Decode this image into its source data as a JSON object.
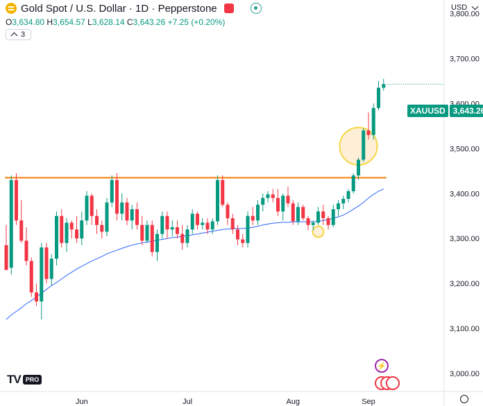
{
  "header": {
    "title": "Gold Spot / U.S. Dollar · 1D · Pepperstone",
    "ohlc": {
      "o_label": "O",
      "o": "3,634.80",
      "h_label": "H",
      "h": "3,654.57",
      "l_label": "L",
      "l": "3,628.14",
      "c_label": "C",
      "c": "3,643.26",
      "change": "+7.25 (+0.20%)"
    },
    "indicator_count": "3"
  },
  "currency": "USD",
  "price_tag": {
    "symbol": "XAUUSD",
    "value": "3,643.26"
  },
  "branding": {
    "logo": "TV",
    "badge": "PRO"
  },
  "colors": {
    "up": "#089981",
    "down": "#f23645",
    "ma": "#2962ff",
    "resistance": "#f57c00",
    "highlight_fill": "#fde9c8",
    "highlight_stroke": "#f5d742"
  },
  "chart_data": {
    "type": "candlestick",
    "symbol": "XAUUSD",
    "y_ticks": [
      3000,
      3100,
      3200,
      3300,
      3400,
      3500,
      3600,
      3700,
      3800
    ],
    "y_tick_labels": [
      "3,000.00",
      "3,100.00",
      "3,200.00",
      "3,300.00",
      "3,400.00",
      "3,500.00",
      "3,600.00",
      "3,700.00",
      "3,800.00"
    ],
    "ylim": [
      2960,
      3830
    ],
    "x_ticks": [
      "Jun",
      "Jul",
      "Aug",
      "Sep"
    ],
    "x_tick_index": [
      15,
      36,
      57,
      72
    ],
    "candles": [
      [
        3285,
        3330,
        3230,
        3230
      ],
      [
        3235,
        3440,
        3220,
        3430
      ],
      [
        3430,
        3445,
        3330,
        3340
      ],
      [
        3340,
        3385,
        3290,
        3295
      ],
      [
        3295,
        3325,
        3240,
        3250
      ],
      [
        3250,
        3258,
        3170,
        3180
      ],
      [
        3180,
        3200,
        3150,
        3160
      ],
      [
        3160,
        3290,
        3120,
        3280
      ],
      [
        3280,
        3290,
        3200,
        3210
      ],
      [
        3210,
        3265,
        3195,
        3255
      ],
      [
        3255,
        3360,
        3240,
        3350
      ],
      [
        3350,
        3365,
        3280,
        3290
      ],
      [
        3290,
        3345,
        3270,
        3335
      ],
      [
        3335,
        3340,
        3300,
        3320
      ],
      [
        3320,
        3350,
        3290,
        3300
      ],
      [
        3300,
        3360,
        3285,
        3340
      ],
      [
        3340,
        3405,
        3330,
        3395
      ],
      [
        3395,
        3400,
        3330,
        3350
      ],
      [
        3350,
        3365,
        3310,
        3330
      ],
      [
        3330,
        3340,
        3300,
        3315
      ],
      [
        3315,
        3390,
        3305,
        3380
      ],
      [
        3380,
        3440,
        3370,
        3430
      ],
      [
        3430,
        3445,
        3340,
        3355
      ],
      [
        3355,
        3400,
        3340,
        3380
      ],
      [
        3380,
        3390,
        3330,
        3340
      ],
      [
        3340,
        3375,
        3320,
        3365
      ],
      [
        3365,
        3380,
        3320,
        3330
      ],
      [
        3330,
        3350,
        3285,
        3295
      ],
      [
        3295,
        3340,
        3290,
        3330
      ],
      [
        3330,
        3340,
        3260,
        3270
      ],
      [
        3270,
        3320,
        3250,
        3310
      ],
      [
        3310,
        3360,
        3300,
        3350
      ],
      [
        3350,
        3360,
        3300,
        3320
      ],
      [
        3320,
        3340,
        3305,
        3325
      ],
      [
        3325,
        3340,
        3300,
        3310
      ],
      [
        3310,
        3330,
        3275,
        3290
      ],
      [
        3290,
        3330,
        3280,
        3320
      ],
      [
        3320,
        3365,
        3310,
        3355
      ],
      [
        3355,
        3360,
        3320,
        3330
      ],
      [
        3330,
        3345,
        3320,
        3335
      ],
      [
        3335,
        3345,
        3310,
        3320
      ],
      [
        3320,
        3345,
        3310,
        3338
      ],
      [
        3338,
        3440,
        3330,
        3430
      ],
      [
        3430,
        3440,
        3370,
        3375
      ],
      [
        3375,
        3380,
        3330,
        3345
      ],
      [
        3345,
        3355,
        3310,
        3320
      ],
      [
        3320,
        3330,
        3285,
        3298
      ],
      [
        3298,
        3310,
        3280,
        3290
      ],
      [
        3290,
        3360,
        3280,
        3350
      ],
      [
        3350,
        3370,
        3330,
        3340
      ],
      [
        3340,
        3385,
        3330,
        3375
      ],
      [
        3375,
        3400,
        3360,
        3390
      ],
      [
        3390,
        3405,
        3380,
        3398
      ],
      [
        3398,
        3410,
        3380,
        3390
      ],
      [
        3390,
        3410,
        3350,
        3360
      ],
      [
        3360,
        3400,
        3340,
        3395
      ],
      [
        3395,
        3415,
        3370,
        3378
      ],
      [
        3378,
        3385,
        3330,
        3338
      ],
      [
        3338,
        3380,
        3330,
        3370
      ],
      [
        3370,
        3375,
        3340,
        3345
      ],
      [
        3345,
        3350,
        3318,
        3330
      ],
      [
        3330,
        3340,
        3318,
        3335
      ],
      [
        3335,
        3370,
        3330,
        3360
      ],
      [
        3360,
        3375,
        3330,
        3345
      ],
      [
        3345,
        3350,
        3320,
        3330
      ],
      [
        3330,
        3375,
        3325,
        3365
      ],
      [
        3365,
        3385,
        3350,
        3378
      ],
      [
        3378,
        3395,
        3365,
        3388
      ],
      [
        3388,
        3410,
        3380,
        3405
      ],
      [
        3405,
        3445,
        3400,
        3440
      ],
      [
        3440,
        3480,
        3430,
        3475
      ],
      [
        3475,
        3545,
        3470,
        3540
      ],
      [
        3540,
        3580,
        3520,
        3530
      ],
      [
        3530,
        3600,
        3520,
        3590
      ],
      [
        3590,
        3650,
        3585,
        3635
      ],
      [
        3635,
        3655,
        3628,
        3643
      ]
    ],
    "ma": [
      3120,
      3130,
      3138,
      3146,
      3155,
      3162,
      3170,
      3178,
      3187,
      3195,
      3202,
      3210,
      3218,
      3225,
      3232,
      3238,
      3244,
      3250,
      3255,
      3260,
      3266,
      3270,
      3274,
      3278,
      3282,
      3285,
      3288,
      3290,
      3292,
      3294,
      3296,
      3298,
      3300,
      3302,
      3303,
      3305,
      3306,
      3308,
      3310,
      3312,
      3314,
      3316,
      3318,
      3320,
      3321,
      3322,
      3322,
      3322,
      3323,
      3325,
      3327,
      3330,
      3332,
      3334,
      3335,
      3336,
      3336,
      3337,
      3337,
      3337,
      3337,
      3337,
      3338,
      3340,
      3342,
      3345,
      3348,
      3352,
      3358,
      3365,
      3372,
      3380,
      3390,
      3398,
      3405,
      3410
    ],
    "resistance": 3435,
    "highlights": [
      {
        "type": "circle",
        "x_index": 70,
        "y": 3505,
        "label": ""
      },
      {
        "type": "circle",
        "x_index": 62,
        "y": 3315,
        "label": ""
      }
    ]
  }
}
